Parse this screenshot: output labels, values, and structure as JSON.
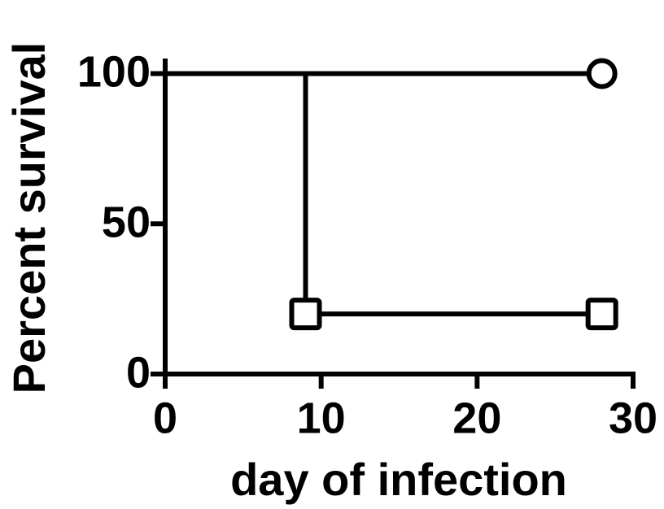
{
  "chart_data": {
    "type": "line",
    "step": true,
    "xlabel": "day of infection",
    "ylabel": "Percent survival",
    "xlim": [
      0,
      30
    ],
    "xticks": [
      0,
      10,
      20,
      30
    ],
    "ylim": [
      0,
      105
    ],
    "yticks": [
      0,
      50,
      100
    ],
    "series": [
      {
        "color": "#000000",
        "marker": "circle",
        "x": [
          0,
          28
        ],
        "values": [
          100,
          100
        ]
      },
      {
        "color": "#000000",
        "marker": "square",
        "x": [
          0,
          9,
          28
        ],
        "values": [
          100,
          20,
          20
        ]
      }
    ]
  }
}
